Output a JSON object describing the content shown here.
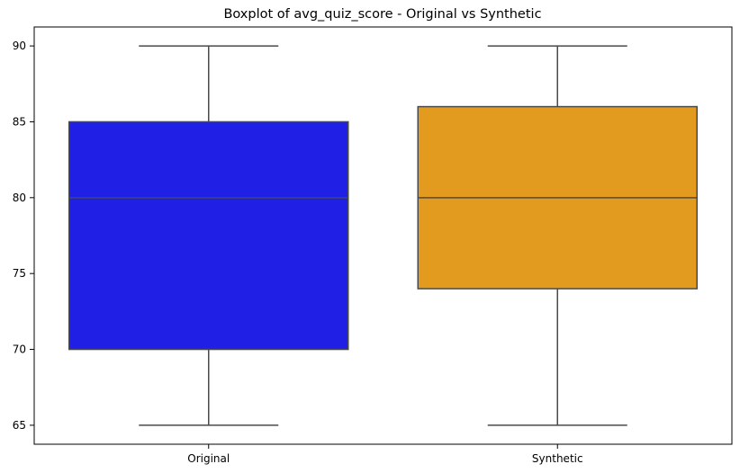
{
  "chart_data": {
    "type": "boxplot",
    "title": "Boxplot of avg_quiz_score - Original vs Synthetic",
    "xlabel": "",
    "ylabel": "",
    "ylim": [
      63.75,
      91.25
    ],
    "yticks": [
      65,
      70,
      75,
      80,
      85,
      90
    ],
    "grid": false,
    "categories": [
      "Original",
      "Synthetic"
    ],
    "boxes": [
      {
        "category": "Original",
        "min": 65,
        "q1": 70,
        "median": 80,
        "q3": 85,
        "max": 90,
        "color": "#1f1fe6"
      },
      {
        "category": "Synthetic",
        "min": 65,
        "q1": 74,
        "median": 80,
        "q3": 86,
        "max": 90,
        "color": "#e39b1f"
      }
    ],
    "line_color": "#4a4a4a"
  }
}
